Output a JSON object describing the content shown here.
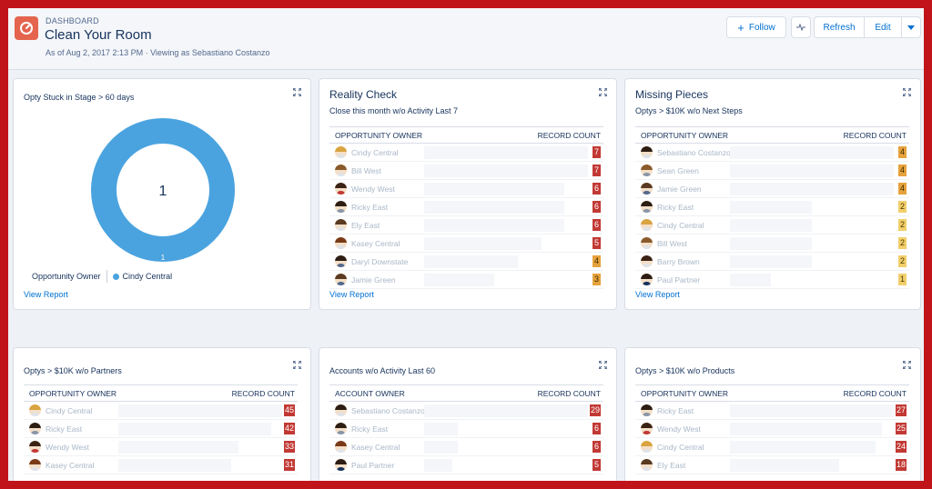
{
  "header": {
    "eyebrow": "DASHBOARD",
    "title": "Clean Your Room",
    "subtitle": "As of Aug 2, 2017 2:13 PM · Viewing as Sebastiano Costanzo",
    "follow_label": "Follow",
    "refresh_label": "Refresh",
    "edit_label": "Edit"
  },
  "colors": {
    "accent": "#0070d2",
    "donut": "#4aa3df",
    "logo": "#e4644e",
    "border": "#c0141a"
  },
  "widget_donut": {
    "title": "Opty Stuck in Stage > 60 days",
    "center_value": "1",
    "ring_value": "1",
    "legend_label": "Opportunity Owner",
    "legend_item": "Cindy Central",
    "view_report": "View Report"
  },
  "chart_data": {
    "type": "pie",
    "title": "Opty Stuck in Stage > 60 days",
    "categories": [
      "Cindy Central"
    ],
    "values": [
      1
    ],
    "legend_title": "Opportunity Owner",
    "legend_placement": "bottom-left"
  },
  "widget_reality": {
    "heading": "Reality Check",
    "subtitle": "Close this month w/o Activity Last 7",
    "col_owner": "OPPORTUNITY OWNER",
    "col_count": "RECORD COUNT",
    "view_report": "View Report",
    "rows": [
      {
        "name": "Cindy Central",
        "count": "7",
        "color": "red",
        "hair": "#d9a441",
        "shirt": "#dfe3ea"
      },
      {
        "name": "Bill West",
        "count": "7",
        "color": "red",
        "hair": "#8b5a2b",
        "shirt": "#dfe3ea"
      },
      {
        "name": "Wendy West",
        "count": "6",
        "color": "red",
        "hair": "#3b2314",
        "shirt": "#c23934"
      },
      {
        "name": "Ricky East",
        "count": "6",
        "color": "red",
        "hair": "#2d1d12",
        "shirt": "#8a96a8"
      },
      {
        "name": "Ely East",
        "count": "6",
        "color": "red",
        "hair": "#5a3a20",
        "shirt": "#dfe3ea"
      },
      {
        "name": "Kasey Central",
        "count": "5",
        "color": "red",
        "hair": "#7a3a18",
        "shirt": "#dfe3ea"
      },
      {
        "name": "Daryl Downstate",
        "count": "4",
        "color": "orange",
        "hair": "#2d1d12",
        "shirt": "#54698d"
      },
      {
        "name": "Jamie Green",
        "count": "3",
        "color": "orange",
        "hair": "#5a3a20",
        "shirt": "#54698d"
      }
    ]
  },
  "widget_missing": {
    "heading": "Missing Pieces",
    "subtitle": "Optys > $10K w/o Next Steps",
    "col_owner": "OPPORTUNITY OWNER",
    "col_count": "RECORD COUNT",
    "view_report": "View Report",
    "rows": [
      {
        "name": "Sebastiano Costanzo",
        "count": "4",
        "color": "orange",
        "hair": "#2d1d12",
        "shirt": "#dfe3ea"
      },
      {
        "name": "Sean Green",
        "count": "4",
        "color": "orange",
        "hair": "#8b5a2b",
        "shirt": "#8a96a8"
      },
      {
        "name": "Jamie Green",
        "count": "4",
        "color": "orange",
        "hair": "#5a3a20",
        "shirt": "#54698d"
      },
      {
        "name": "Ricky East",
        "count": "2",
        "color": "yellow",
        "hair": "#2d1d12",
        "shirt": "#8a96a8"
      },
      {
        "name": "Cindy Central",
        "count": "2",
        "color": "yellow",
        "hair": "#d9a441",
        "shirt": "#dfe3ea"
      },
      {
        "name": "Bill West",
        "count": "2",
        "color": "yellow",
        "hair": "#8b5a2b",
        "shirt": "#dfe3ea"
      },
      {
        "name": "Barry Brown",
        "count": "2",
        "color": "yellow",
        "hair": "#3b2314",
        "shirt": "#dfe3ea"
      },
      {
        "name": "Paul Partner",
        "count": "1",
        "color": "yellow",
        "hair": "#2d1d12",
        "shirt": "#16325c"
      }
    ]
  },
  "widget_partners": {
    "title": "Optys > $10K w/o Partners",
    "col_owner": "OPPORTUNITY OWNER",
    "col_count": "RECORD COUNT",
    "rows": [
      {
        "name": "Cindy Central",
        "count": "45",
        "color": "red",
        "hair": "#d9a441",
        "shirt": "#dfe3ea"
      },
      {
        "name": "Ricky East",
        "count": "42",
        "color": "red",
        "hair": "#2d1d12",
        "shirt": "#8a96a8"
      },
      {
        "name": "Wendy West",
        "count": "33",
        "color": "red",
        "hair": "#3b2314",
        "shirt": "#c23934"
      },
      {
        "name": "Kasey Central",
        "count": "31",
        "color": "red",
        "hair": "#7a3a18",
        "shirt": "#dfe3ea"
      }
    ]
  },
  "widget_accounts": {
    "title": "Accounts w/o Activity Last 60",
    "col_owner": "ACCOUNT OWNER",
    "col_count": "RECORD COUNT",
    "rows": [
      {
        "name": "Sebastiano Costanzo",
        "count": "29",
        "color": "red",
        "hair": "#2d1d12",
        "shirt": "#dfe3ea"
      },
      {
        "name": "Ricky East",
        "count": "6",
        "color": "red",
        "hair": "#2d1d12",
        "shirt": "#8a96a8"
      },
      {
        "name": "Kasey Central",
        "count": "6",
        "color": "red",
        "hair": "#7a3a18",
        "shirt": "#dfe3ea"
      },
      {
        "name": "Paul Partner",
        "count": "5",
        "color": "red",
        "hair": "#2d1d12",
        "shirt": "#16325c"
      }
    ]
  },
  "widget_products": {
    "title": "Optys > $10K w/o Products",
    "col_owner": "OPPORTUNITY OWNER",
    "col_count": "RECORD COUNT",
    "rows": [
      {
        "name": "Ricky East",
        "count": "27",
        "color": "red",
        "hair": "#2d1d12",
        "shirt": "#8a96a8"
      },
      {
        "name": "Wendy West",
        "count": "25",
        "color": "red",
        "hair": "#3b2314",
        "shirt": "#c23934"
      },
      {
        "name": "Cindy Central",
        "count": "24",
        "color": "red",
        "hair": "#d9a441",
        "shirt": "#dfe3ea"
      },
      {
        "name": "Ely East",
        "count": "18",
        "color": "red",
        "hair": "#5a3a20",
        "shirt": "#dfe3ea"
      }
    ]
  }
}
